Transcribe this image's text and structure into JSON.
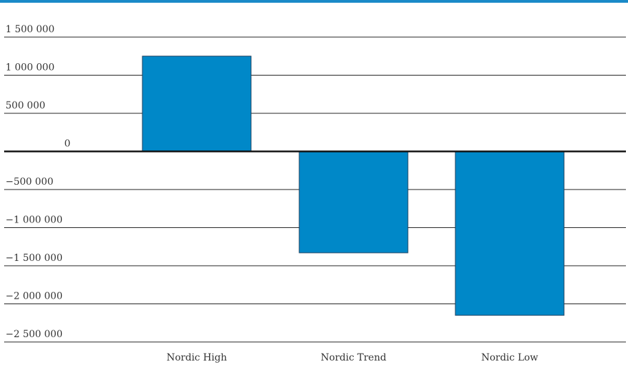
{
  "chart_data": {
    "type": "bar",
    "categories": [
      "Nordic High",
      "Nordic Trend",
      "Nordic Low"
    ],
    "values": [
      1250000,
      -1330000,
      -2150000
    ],
    "ylim": [
      -2500000,
      1500000
    ],
    "yticks": [
      1500000,
      1000000,
      500000,
      0,
      -500000,
      -1000000,
      -1500000,
      -2000000,
      -2500000
    ],
    "ytick_labels": [
      "1 500 000",
      "1 000 000",
      "500 000",
      "0",
      "−500 000",
      "−1 000 000",
      "−1 500 000",
      "−2 000 000",
      "−2 500 000"
    ],
    "title": "",
    "xlabel": "",
    "ylabel": "",
    "grid": true,
    "legend": "none",
    "colors": {
      "bar": "#0088c8",
      "bar_edge": "#1c3f5e",
      "grid": "#222222",
      "zero_line": "#111111",
      "accent_rule": "#1a8ac8",
      "text": "#333333"
    }
  }
}
